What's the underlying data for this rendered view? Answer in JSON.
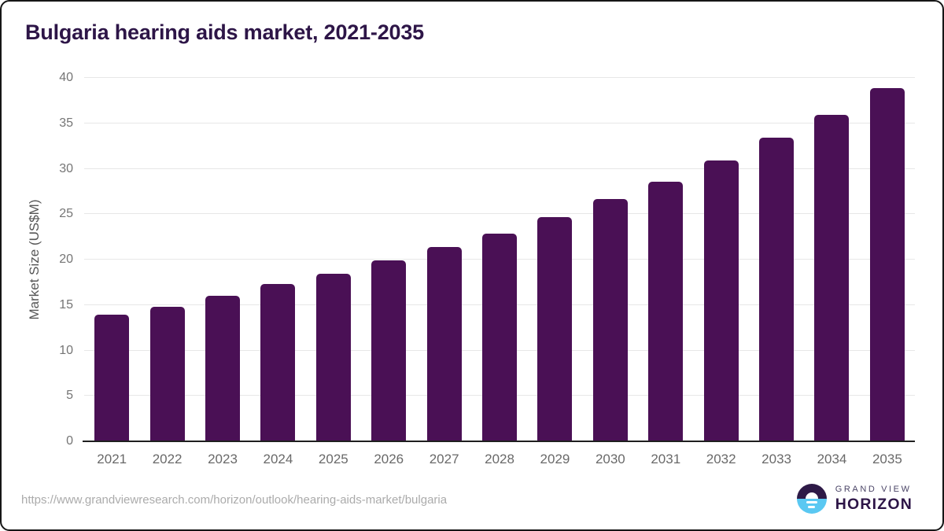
{
  "chart_data": {
    "type": "bar",
    "title": "Bulgaria hearing aids market, 2021-2035",
    "categories": [
      "2021",
      "2022",
      "2023",
      "2024",
      "2025",
      "2026",
      "2027",
      "2028",
      "2029",
      "2030",
      "2031",
      "2032",
      "2033",
      "2034",
      "2035"
    ],
    "values": [
      13.9,
      14.8,
      16.0,
      17.3,
      18.4,
      19.9,
      21.4,
      22.9,
      24.7,
      26.7,
      28.6,
      30.9,
      33.4,
      35.9,
      38.9
    ],
    "xlabel": "",
    "ylabel": "Market Size (US$M)",
    "ylim": [
      0,
      40
    ],
    "yticks": [
      0,
      5,
      10,
      15,
      20,
      25,
      30,
      35,
      40
    ],
    "grid": true,
    "legend": false,
    "bar_color": "#4a1055"
  },
  "colors": {
    "title": "#2d1547",
    "bar": "#4a1055",
    "gridline": "#e7e7e7",
    "baseline": "#1f1f1f",
    "axis_tick": "#757575",
    "url_text": "#ababab",
    "logo_purple": "#2e1a47",
    "logo_blue": "#5ac8f2"
  },
  "footer": {
    "source_url": "https://www.grandviewresearch.com/horizon/outlook/hearing-aids-market/bulgaria",
    "logo": {
      "top_text": "GRAND VIEW",
      "bottom_text": "HORIZON"
    }
  }
}
